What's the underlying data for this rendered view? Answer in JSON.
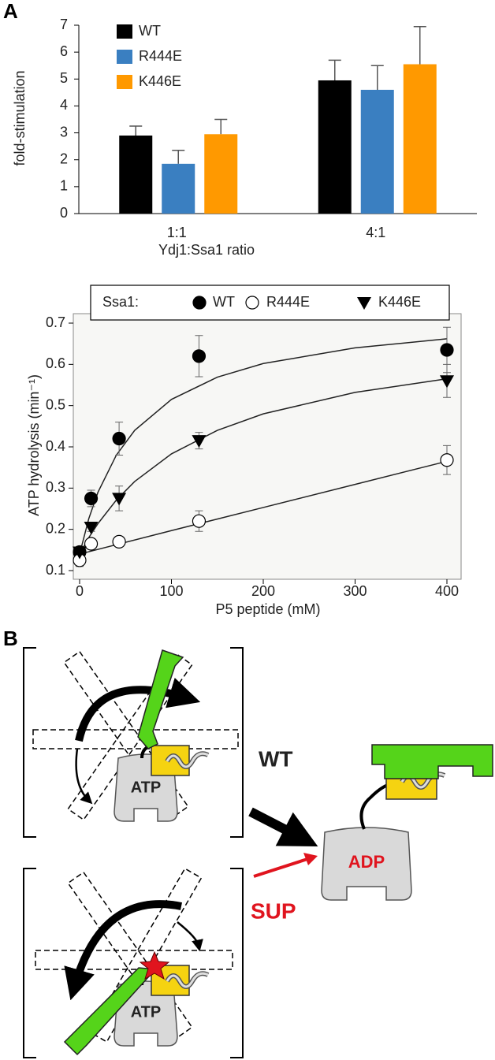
{
  "panel_labels": [
    "A",
    "B"
  ],
  "chart_data": [
    {
      "type": "bar",
      "y_label": "fold-stimulation",
      "x_label": "Ydj1:Ssa1 ratio",
      "categories": [
        "1:1",
        "4:1"
      ],
      "series": [
        {
          "name": "WT",
          "color": "#000000",
          "values": [
            2.9,
            4.95
          ],
          "errors": [
            0.35,
            0.75
          ]
        },
        {
          "name": "R444E",
          "color": "#3a7fc1",
          "values": [
            1.85,
            4.6
          ],
          "errors": [
            0.5,
            0.9
          ]
        },
        {
          "name": "K446E",
          "color": "#ff9900",
          "values": [
            2.95,
            5.55
          ],
          "errors": [
            0.55,
            1.4
          ]
        }
      ],
      "ylim": [
        0,
        7
      ],
      "yticks": [
        0,
        1,
        2,
        3,
        4,
        5,
        6,
        7
      ],
      "legend": "top-left"
    },
    {
      "type": "scatter",
      "x_label": "P5 peptide (mM)",
      "y_label": "ATP hydrolysis (min⁻¹)",
      "legend_title": "Ssa1:",
      "legend": "top-outside",
      "xlim": [
        0,
        400
      ],
      "xticks": [
        0,
        100,
        200,
        300,
        400
      ],
      "ylim": [
        0.1,
        0.7
      ],
      "yticks": [
        0.1,
        0.2,
        0.3,
        0.4,
        0.5,
        0.6,
        0.7
      ],
      "series": [
        {
          "name": "WT",
          "marker": "filled-circle",
          "color": "#000000",
          "x": [
            0,
            12.5,
            43,
            130,
            400
          ],
          "values": [
            0.145,
            0.275,
            0.42,
            0.62,
            0.635
          ],
          "errors": [
            0.01,
            0.02,
            0.04,
            0.05,
            0.055
          ],
          "fit": {
            "x": [
              0,
              10,
              20,
              40,
              60,
              100,
              150,
              200,
              300,
              400
            ],
            "values": [
              0.14,
              0.226,
              0.29,
              0.38,
              0.44,
              0.515,
              0.569,
              0.602,
              0.64,
              0.662
            ]
          }
        },
        {
          "name": "R444E",
          "marker": "open-circle",
          "color": "#000000",
          "x": [
            0,
            12.5,
            43,
            130,
            400
          ],
          "values": [
            0.125,
            0.165,
            0.17,
            0.22,
            0.368
          ],
          "errors": [
            0.015,
            0.01,
            0.005,
            0.025,
            0.035
          ],
          "fit": {
            "x": [
              0,
              100,
              200,
              300,
              400
            ],
            "values": [
              0.14,
              0.197,
              0.253,
              0.309,
              0.365
            ]
          }
        },
        {
          "name": "K446E",
          "marker": "triangle-down",
          "color": "#000000",
          "x": [
            0,
            12.5,
            43,
            130,
            400
          ],
          "values": [
            0.145,
            0.205,
            0.275,
            0.415,
            0.56
          ],
          "errors": [
            0.01,
            0.01,
            0.03,
            0.02,
            0.04
          ],
          "fit": {
            "x": [
              0,
              10,
              20,
              40,
              60,
              100,
              150,
              200,
              300,
              400
            ],
            "values": [
              0.14,
              0.18,
              0.214,
              0.271,
              0.316,
              0.383,
              0.44,
              0.48,
              0.532,
              0.565
            ]
          }
        }
      ],
      "grid": false
    }
  ],
  "diagram": {
    "top_nucleotide": "ATP",
    "bottom_nucleotide": "ATP",
    "wt_label": "WT",
    "sup_label": "SUP",
    "product": "ADP"
  }
}
